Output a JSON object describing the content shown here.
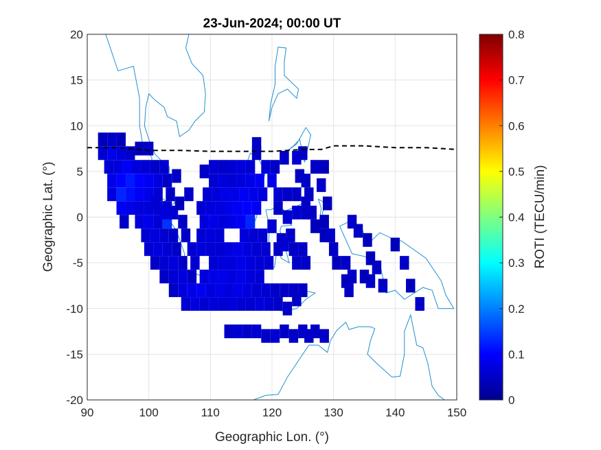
{
  "chart_data": {
    "type": "heatmap",
    "title": "23-Jun-2024; 00:00 UT",
    "xlabel": "Geographic Lon. (°)",
    "ylabel": "Geographic Lat. (°)",
    "xlim": [
      90,
      150
    ],
    "ylim": [
      -20,
      20
    ],
    "xticks": [
      "90",
      "100",
      "110",
      "120",
      "130",
      "140",
      "150"
    ],
    "yticks": [
      "20",
      "15",
      "10",
      "5",
      "0",
      "-5",
      "-10",
      "-15",
      "-20"
    ],
    "grid": true,
    "colorbar": {
      "label": "ROTI (TECU/min)",
      "colormap": "jet",
      "range": [
        0,
        0.8
      ],
      "ticks": [
        "0",
        "0.1",
        "0.2",
        "0.3",
        "0.4",
        "0.5",
        "0.6",
        "0.7",
        "0.8"
      ]
    },
    "cell_size_deg": 1.5,
    "cells": [
      [
        92.5,
        8.5,
        0.04
      ],
      [
        94,
        8.5,
        0.05
      ],
      [
        95.5,
        8.5,
        0.04
      ],
      [
        92.5,
        7,
        0.06
      ],
      [
        94,
        7,
        0.08
      ],
      [
        95.5,
        7,
        0.07
      ],
      [
        97,
        7,
        0.05
      ],
      [
        98.5,
        7.5,
        0.04
      ],
      [
        100,
        7.5,
        0.05
      ],
      [
        93.5,
        5.5,
        0.06
      ],
      [
        95,
        5.5,
        0.07
      ],
      [
        96.5,
        5.5,
        0.09
      ],
      [
        98,
        5.5,
        0.07
      ],
      [
        99.5,
        5.5,
        0.06
      ],
      [
        101,
        5.5,
        0.05
      ],
      [
        102.5,
        5.5,
        0.06
      ],
      [
        94,
        4,
        0.08
      ],
      [
        95.5,
        4,
        0.1
      ],
      [
        97,
        4,
        0.12
      ],
      [
        98.5,
        4,
        0.1
      ],
      [
        100,
        4,
        0.09
      ],
      [
        101.5,
        4,
        0.07
      ],
      [
        103,
        4,
        0.05
      ],
      [
        94,
        2.5,
        0.07
      ],
      [
        95.5,
        2.5,
        0.13
      ],
      [
        97,
        2.5,
        0.11
      ],
      [
        98.5,
        2.5,
        0.09
      ],
      [
        100,
        2.5,
        0.08
      ],
      [
        101.5,
        2.5,
        0.06
      ],
      [
        95.5,
        1,
        0.09
      ],
      [
        97,
        1,
        0.08
      ],
      [
        98.5,
        1,
        0.07
      ],
      [
        100,
        1,
        0.07
      ],
      [
        101.5,
        1,
        0.06
      ],
      [
        103,
        1,
        0.05
      ],
      [
        96,
        -0.5,
        0.05
      ],
      [
        98.5,
        -0.5,
        0.07
      ],
      [
        100,
        -0.5,
        0.08
      ],
      [
        101.5,
        -0.5,
        0.06
      ],
      [
        103,
        -0.5,
        0.14
      ],
      [
        99.5,
        -2,
        0.06
      ],
      [
        101,
        -2,
        0.07
      ],
      [
        102.5,
        -2,
        0.06
      ],
      [
        104,
        -2,
        0.05
      ],
      [
        100,
        -3.5,
        0.06
      ],
      [
        101.5,
        -3.5,
        0.07
      ],
      [
        103,
        -3.5,
        0.06
      ],
      [
        104.5,
        -3.5,
        0.05
      ],
      [
        101,
        -5,
        0.05
      ],
      [
        102.5,
        -5,
        0.06
      ],
      [
        104,
        -5,
        0.07
      ],
      [
        105.5,
        -5,
        0.05
      ],
      [
        102.5,
        -6.5,
        0.05
      ],
      [
        104,
        -6.5,
        0.06
      ],
      [
        105.5,
        -6.5,
        0.07
      ],
      [
        107,
        -6.5,
        0.05
      ],
      [
        104,
        -8,
        0.05
      ],
      [
        105.5,
        -8,
        0.07
      ],
      [
        107,
        -8,
        0.08
      ],
      [
        108.5,
        -8,
        0.09
      ],
      [
        106,
        -9.5,
        0.06
      ],
      [
        107.5,
        -9.5,
        0.07
      ],
      [
        109,
        -9.5,
        0.06
      ],
      [
        110.5,
        -9.5,
        0.07
      ],
      [
        112,
        -9.5,
        0.06
      ],
      [
        113.5,
        -9.5,
        0.07
      ],
      [
        115,
        -9.5,
        0.06
      ],
      [
        116.5,
        -9.5,
        0.06
      ],
      [
        118,
        -9.5,
        0.07
      ],
      [
        119.5,
        -9.5,
        0.06
      ],
      [
        121,
        -9.5,
        0.05
      ],
      [
        122.5,
        -10,
        0.05
      ],
      [
        124,
        -9,
        0.05
      ],
      [
        101,
        1.5,
        0.06
      ],
      [
        102.5,
        0.5,
        0.07
      ],
      [
        104,
        0.5,
        0.06
      ],
      [
        105.5,
        -0.5,
        0.05
      ],
      [
        104.5,
        4.5,
        0.05
      ],
      [
        103.5,
        2.5,
        0.05
      ],
      [
        105,
        1.5,
        0.04
      ],
      [
        106.5,
        2.5,
        0.05
      ],
      [
        106,
        -2,
        0.05
      ],
      [
        107,
        -3.5,
        0.06
      ],
      [
        108.5,
        -3.5,
        0.07
      ],
      [
        110,
        -3.5,
        0.06
      ],
      [
        108.5,
        -2,
        0.06
      ],
      [
        110,
        -2,
        0.07
      ],
      [
        111.5,
        -2,
        0.06
      ],
      [
        109,
        -0.5,
        0.07
      ],
      [
        110.5,
        -0.5,
        0.08
      ],
      [
        112,
        -0.5,
        0.07
      ],
      [
        113.5,
        -0.5,
        0.08
      ],
      [
        115,
        -0.5,
        0.09
      ],
      [
        116.5,
        -0.5,
        0.13
      ],
      [
        108.5,
        1,
        0.06
      ],
      [
        110,
        1,
        0.07
      ],
      [
        111.5,
        1,
        0.07
      ],
      [
        113,
        1,
        0.08
      ],
      [
        114.5,
        1,
        0.09
      ],
      [
        116,
        1,
        0.1
      ],
      [
        117.5,
        1,
        0.09
      ],
      [
        109.5,
        2.5,
        0.06
      ],
      [
        111,
        2.5,
        0.07
      ],
      [
        112.5,
        2.5,
        0.08
      ],
      [
        114,
        2.5,
        0.08
      ],
      [
        115.5,
        2.5,
        0.09
      ],
      [
        117,
        2.5,
        0.08
      ],
      [
        118.5,
        2.5,
        0.07
      ],
      [
        110.5,
        4,
        0.06
      ],
      [
        112,
        4,
        0.07
      ],
      [
        113.5,
        4,
        0.06
      ],
      [
        115,
        4,
        0.07
      ],
      [
        116.5,
        4,
        0.08
      ],
      [
        118,
        4,
        0.09
      ],
      [
        120,
        4,
        0.08
      ],
      [
        109,
        5,
        0.05
      ],
      [
        110.5,
        5.5,
        0.06
      ],
      [
        112,
        5.5,
        0.05
      ],
      [
        113.5,
        5.5,
        0.06
      ],
      [
        115,
        5.5,
        0.07
      ],
      [
        116.5,
        5.5,
        0.06
      ],
      [
        117.5,
        7,
        0.05
      ],
      [
        119,
        5.5,
        0.06
      ],
      [
        120.5,
        5.5,
        0.05
      ],
      [
        122,
        6.5,
        0.05
      ],
      [
        124,
        6.5,
        0.06
      ],
      [
        125,
        7,
        0.05
      ],
      [
        117.5,
        8,
        0.05
      ],
      [
        111.5,
        -3.5,
        0.06
      ],
      [
        113,
        -3.5,
        0.07
      ],
      [
        114.5,
        -3.5,
        0.08
      ],
      [
        116,
        -3.5,
        0.07
      ],
      [
        117.5,
        -3.5,
        0.06
      ],
      [
        119,
        -3.5,
        0.06
      ],
      [
        110.5,
        -5,
        0.06
      ],
      [
        112,
        -5,
        0.07
      ],
      [
        113.5,
        -5,
        0.07
      ],
      [
        115,
        -5,
        0.08
      ],
      [
        116.5,
        -5,
        0.07
      ],
      [
        118,
        -5,
        0.06
      ],
      [
        119.5,
        -5,
        0.06
      ],
      [
        109,
        -6.5,
        0.07
      ],
      [
        110.5,
        -6.5,
        0.08
      ],
      [
        112,
        -6.5,
        0.08
      ],
      [
        113.5,
        -6.5,
        0.07
      ],
      [
        115,
        -6.5,
        0.08
      ],
      [
        116.5,
        -6.5,
        0.07
      ],
      [
        118,
        -6.5,
        0.06
      ],
      [
        110,
        -8,
        0.07
      ],
      [
        111.5,
        -8,
        0.08
      ],
      [
        113,
        -8,
        0.07
      ],
      [
        114.5,
        -8,
        0.08
      ],
      [
        116,
        -8,
        0.07
      ],
      [
        117.5,
        -8,
        0.06
      ],
      [
        119,
        -8,
        0.06
      ],
      [
        120.5,
        -8,
        0.05
      ],
      [
        122,
        -8,
        0.05
      ],
      [
        123.5,
        -8,
        0.05
      ],
      [
        125,
        -8,
        0.05
      ],
      [
        107.5,
        -5,
        0.06
      ],
      [
        115.5,
        -2,
        0.07
      ],
      [
        117,
        -2,
        0.06
      ],
      [
        118.5,
        -2,
        0.06
      ],
      [
        120,
        -1,
        0.06
      ],
      [
        121,
        1,
        0.05
      ],
      [
        121.5,
        -2.5,
        0.05
      ],
      [
        123,
        -2,
        0.05
      ],
      [
        122.5,
        0,
        0.06
      ],
      [
        124,
        0.5,
        0.06
      ],
      [
        125.5,
        0.5,
        0.05
      ],
      [
        121,
        -3.5,
        0.05
      ],
      [
        122,
        -3,
        0.06
      ],
      [
        123.5,
        -3.5,
        0.05
      ],
      [
        125,
        -3.5,
        0.05
      ],
      [
        124,
        -5,
        0.05
      ],
      [
        125.5,
        -5,
        0.05
      ],
      [
        121,
        2.5,
        0.06
      ],
      [
        122.5,
        2.5,
        0.05
      ],
      [
        124,
        2.5,
        0.05
      ],
      [
        125.5,
        1.5,
        0.05
      ],
      [
        124.5,
        4.5,
        0.05
      ],
      [
        125.5,
        4,
        0.05
      ],
      [
        126,
        2.5,
        0.05
      ],
      [
        126.5,
        0.5,
        0.05
      ],
      [
        127,
        -1,
        0.04
      ],
      [
        127,
        5.5,
        0.05
      ],
      [
        128.5,
        5.5,
        0.04
      ],
      [
        128,
        3.5,
        0.05
      ],
      [
        129,
        1.5,
        0.04
      ],
      [
        128.5,
        -0.5,
        0.04
      ],
      [
        128.5,
        -2,
        0.04
      ],
      [
        129.5,
        -2,
        0.05
      ],
      [
        130,
        -3.5,
        0.05
      ],
      [
        130.5,
        -5,
        0.04
      ],
      [
        132,
        -5,
        0.05
      ],
      [
        133,
        -0.5,
        0.05
      ],
      [
        134,
        -1.5,
        0.05
      ],
      [
        135.5,
        -2.5,
        0.04
      ],
      [
        136,
        -4.5,
        0.04
      ],
      [
        137,
        -5.5,
        0.05
      ],
      [
        132,
        -7,
        0.04
      ],
      [
        136,
        -7,
        0.05
      ],
      [
        133,
        -6.5,
        0.05
      ],
      [
        135,
        -6.5,
        0.04
      ],
      [
        132.5,
        -8,
        0.05
      ],
      [
        140,
        -3,
        0.04
      ],
      [
        141.5,
        -5,
        0.05
      ],
      [
        144,
        -9.5,
        0.05
      ],
      [
        142.5,
        -7.5,
        0.04
      ],
      [
        138,
        -7.5,
        0.05
      ],
      [
        113,
        -12.5,
        0.05
      ],
      [
        114.5,
        -12.5,
        0.06
      ],
      [
        116,
        -12.5,
        0.05
      ],
      [
        117.5,
        -12.5,
        0.06
      ],
      [
        119,
        -13,
        0.05
      ],
      [
        120.5,
        -13,
        0.06
      ],
      [
        122,
        -12.5,
        0.05
      ],
      [
        123.5,
        -13,
        0.05
      ],
      [
        125,
        -12.5,
        0.05
      ],
      [
        126,
        -13,
        0.05
      ],
      [
        127,
        -12.5,
        0.05
      ],
      [
        128.5,
        -13,
        0.05
      ]
    ],
    "equator_line": [
      [
        90,
        7.6
      ],
      [
        95,
        7.6
      ],
      [
        100,
        7.3
      ],
      [
        105,
        7.3
      ],
      [
        110,
        7.2
      ],
      [
        115,
        7.2
      ],
      [
        120,
        7.2
      ],
      [
        125,
        7.4
      ],
      [
        128,
        7.4
      ],
      [
        130,
        7.8
      ],
      [
        135,
        7.8
      ],
      [
        140,
        7.6
      ],
      [
        145,
        7.6
      ],
      [
        150,
        7.4
      ]
    ]
  }
}
